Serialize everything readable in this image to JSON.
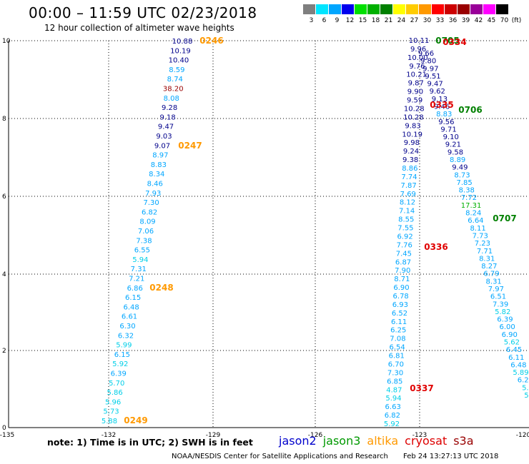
{
  "header": {
    "title": "00:00 – 11:59 UTC 02/23/2018",
    "subtitle": "12 hour collection of altimeter wave heights"
  },
  "color_scale": {
    "unit": "(ft)",
    "bins": [
      {
        "label": "3",
        "color": "#7f7f7f"
      },
      {
        "label": "6",
        "color": "#00e5ff"
      },
      {
        "label": "9",
        "color": "#00a6ff"
      },
      {
        "label": "12",
        "color": "#0000ee"
      },
      {
        "label": "15",
        "color": "#00e000"
      },
      {
        "label": "18",
        "color": "#00b000"
      },
      {
        "label": "21",
        "color": "#008000"
      },
      {
        "label": "24",
        "color": "#ffff00"
      },
      {
        "label": "27",
        "color": "#ffcc00"
      },
      {
        "label": "30",
        "color": "#ff9900"
      },
      {
        "label": "33",
        "color": "#ff0000"
      },
      {
        "label": "36",
        "color": "#cc0000"
      },
      {
        "label": "39",
        "color": "#990000"
      },
      {
        "label": "42",
        "color": "#990099"
      },
      {
        "label": "45",
        "color": "#ff00ff"
      },
      {
        "label": "70",
        "color": "#000000"
      }
    ]
  },
  "map": {
    "x_ticks": [
      "-135",
      "-132",
      "-129",
      "-126",
      "-123",
      "-120"
    ],
    "y_ticks": [
      "0",
      "2",
      "4",
      "6",
      "8",
      "10"
    ],
    "track_left": [
      {
        "v": "10.88",
        "c": "#00008b"
      },
      {
        "v": "10.19",
        "c": "#00008b"
      },
      {
        "v": "10.40",
        "c": "#00008b"
      },
      {
        "v": "8.59",
        "c": "#00a6ff"
      },
      {
        "v": "8.74",
        "c": "#00a6ff"
      },
      {
        "v": "38.20",
        "c": "#990000"
      },
      {
        "v": "8.08",
        "c": "#00a6ff"
      },
      {
        "v": "9.28",
        "c": "#00008b"
      },
      {
        "v": "9.18",
        "c": "#00008b"
      },
      {
        "v": "9.47",
        "c": "#00008b"
      },
      {
        "v": "9.03",
        "c": "#00008b"
      },
      {
        "v": "9.07",
        "c": "#00008b"
      },
      {
        "v": "8.97",
        "c": "#00a6ff"
      },
      {
        "v": "8.83",
        "c": "#00a6ff"
      },
      {
        "v": "8.34",
        "c": "#00a6ff"
      },
      {
        "v": "8.46",
        "c": "#00a6ff"
      },
      {
        "v": "7.93",
        "c": "#00a6ff"
      },
      {
        "v": "7.30",
        "c": "#00a6ff"
      },
      {
        "v": "6.82",
        "c": "#00a6ff"
      },
      {
        "v": "8.09",
        "c": "#00a6ff"
      },
      {
        "v": "7.06",
        "c": "#00a6ff"
      },
      {
        "v": "7.38",
        "c": "#00a6ff"
      },
      {
        "v": "6.55",
        "c": "#00a6ff"
      },
      {
        "v": "5.94",
        "c": "#00cfe8"
      },
      {
        "v": "7.31",
        "c": "#00a6ff"
      },
      {
        "v": "7.21",
        "c": "#00a6ff"
      },
      {
        "v": "6.86",
        "c": "#00a6ff"
      },
      {
        "v": "6.15",
        "c": "#00a6ff"
      },
      {
        "v": "6.48",
        "c": "#00a6ff"
      },
      {
        "v": "6.61",
        "c": "#00a6ff"
      },
      {
        "v": "6.30",
        "c": "#00a6ff"
      },
      {
        "v": "6.32",
        "c": "#00a6ff"
      },
      {
        "v": "5.99",
        "c": "#00cfe8"
      },
      {
        "v": "6.15",
        "c": "#00a6ff"
      },
      {
        "v": "5.92",
        "c": "#00cfe8"
      },
      {
        "v": "6.39",
        "c": "#00a6ff"
      },
      {
        "v": "5.70",
        "c": "#00cfe8"
      },
      {
        "v": "5.86",
        "c": "#00cfe8"
      },
      {
        "v": "5.96",
        "c": "#00cfe8"
      },
      {
        "v": "5.73",
        "c": "#00cfe8"
      },
      {
        "v": "5.88",
        "c": "#00cfe8"
      }
    ],
    "track_mid": [
      {
        "v": "10.11",
        "c": "#00008b"
      },
      {
        "v": "9.96",
        "c": "#00008b"
      },
      {
        "v": "10.00",
        "c": "#00008b"
      },
      {
        "v": "9.76",
        "c": "#00008b"
      },
      {
        "v": "10.21",
        "c": "#00008b"
      },
      {
        "v": "9.87",
        "c": "#00008b"
      },
      {
        "v": "9.90",
        "c": "#00008b"
      },
      {
        "v": "9.59",
        "c": "#00008b"
      },
      {
        "v": "10.28",
        "c": "#00008b"
      },
      {
        "v": "10.28",
        "c": "#00008b"
      },
      {
        "v": "9.83",
        "c": "#00008b"
      },
      {
        "v": "10.19",
        "c": "#00008b"
      },
      {
        "v": "9.98",
        "c": "#00008b"
      },
      {
        "v": "9.24",
        "c": "#00008b"
      },
      {
        "v": "9.38",
        "c": "#00008b"
      },
      {
        "v": "8.86",
        "c": "#00a6ff"
      },
      {
        "v": "7.74",
        "c": "#00a6ff"
      },
      {
        "v": "7.87",
        "c": "#00a6ff"
      },
      {
        "v": "7.69",
        "c": "#00a6ff"
      },
      {
        "v": "8.12",
        "c": "#00a6ff"
      },
      {
        "v": "7.14",
        "c": "#00a6ff"
      },
      {
        "v": "8.55",
        "c": "#00a6ff"
      },
      {
        "v": "7.55",
        "c": "#00a6ff"
      },
      {
        "v": "6.92",
        "c": "#00a6ff"
      },
      {
        "v": "7.76",
        "c": "#00a6ff"
      },
      {
        "v": "7.45",
        "c": "#00a6ff"
      },
      {
        "v": "6.87",
        "c": "#00a6ff"
      },
      {
        "v": "7.90",
        "c": "#00a6ff"
      },
      {
        "v": "8.71",
        "c": "#00a6ff"
      },
      {
        "v": "6.90",
        "c": "#00a6ff"
      },
      {
        "v": "6.78",
        "c": "#00a6ff"
      },
      {
        "v": "6.93",
        "c": "#00a6ff"
      },
      {
        "v": "6.52",
        "c": "#00a6ff"
      },
      {
        "v": "6.11",
        "c": "#00a6ff"
      },
      {
        "v": "6.25",
        "c": "#00a6ff"
      },
      {
        "v": "7.08",
        "c": "#00a6ff"
      },
      {
        "v": "6.54",
        "c": "#00a6ff"
      },
      {
        "v": "6.81",
        "c": "#00a6ff"
      },
      {
        "v": "6.70",
        "c": "#00a6ff"
      },
      {
        "v": "7.30",
        "c": "#00a6ff"
      },
      {
        "v": "6.85",
        "c": "#00a6ff"
      },
      {
        "v": "4.87",
        "c": "#00cfe8"
      },
      {
        "v": "5.94",
        "c": "#00cfe8"
      },
      {
        "v": "6.63",
        "c": "#00a6ff"
      },
      {
        "v": "6.82",
        "c": "#00a6ff"
      },
      {
        "v": "5.92",
        "c": "#00cfe8"
      }
    ],
    "track_right": [
      {
        "v": "9.66",
        "c": "#00008b"
      },
      {
        "v": "9.80",
        "c": "#00008b"
      },
      {
        "v": "9.97",
        "c": "#00008b"
      },
      {
        "v": "9.51",
        "c": "#00008b"
      },
      {
        "v": "9.47",
        "c": "#00008b"
      },
      {
        "v": "9.62",
        "c": "#00008b"
      },
      {
        "v": "9.13",
        "c": "#00008b"
      },
      {
        "v": "9.46",
        "c": "#00008b"
      },
      {
        "v": "8.83",
        "c": "#00a6ff"
      },
      {
        "v": "9.56",
        "c": "#00008b"
      },
      {
        "v": "9.71",
        "c": "#00008b"
      },
      {
        "v": "9.10",
        "c": "#00008b"
      },
      {
        "v": "9.21",
        "c": "#00008b"
      },
      {
        "v": "9.58",
        "c": "#00008b"
      },
      {
        "v": "8.89",
        "c": "#00a6ff"
      },
      {
        "v": "9.49",
        "c": "#00008b"
      },
      {
        "v": "8.73",
        "c": "#00a6ff"
      },
      {
        "v": "7.85",
        "c": "#00a6ff"
      },
      {
        "v": "8.38",
        "c": "#00a6ff"
      },
      {
        "v": "7.72",
        "c": "#00a6ff"
      },
      {
        "v": "17.31",
        "c": "#00b000"
      },
      {
        "v": "8.24",
        "c": "#00a6ff"
      },
      {
        "v": "6.64",
        "c": "#00a6ff"
      },
      {
        "v": "8.11",
        "c": "#00a6ff"
      },
      {
        "v": "7.73",
        "c": "#00a6ff"
      },
      {
        "v": "7.23",
        "c": "#00a6ff"
      },
      {
        "v": "7.71",
        "c": "#00a6ff"
      },
      {
        "v": "8.31",
        "c": "#00a6ff"
      },
      {
        "v": "8.27",
        "c": "#00a6ff"
      },
      {
        "v": "6.79",
        "c": "#00a6ff"
      },
      {
        "v": "8.31",
        "c": "#00a6ff"
      },
      {
        "v": "7.97",
        "c": "#00a6ff"
      },
      {
        "v": "6.51",
        "c": "#00a6ff"
      },
      {
        "v": "7.39",
        "c": "#00a6ff"
      },
      {
        "v": "5.82",
        "c": "#00cfe8"
      },
      {
        "v": "6.39",
        "c": "#00a6ff"
      },
      {
        "v": "6.00",
        "c": "#00a6ff"
      },
      {
        "v": "6.90",
        "c": "#00a6ff"
      },
      {
        "v": "5.62",
        "c": "#00cfe8"
      },
      {
        "v": "6.45",
        "c": "#00a6ff"
      },
      {
        "v": "6.11",
        "c": "#00a6ff"
      },
      {
        "v": "6.48",
        "c": "#00a6ff"
      },
      {
        "v": "5.89",
        "c": "#00cfe8"
      },
      {
        "v": "6.2",
        "c": "#00a6ff"
      },
      {
        "v": "5.",
        "c": "#00cfe8"
      },
      {
        "v": "5.",
        "c": "#00cfe8"
      }
    ],
    "time_labels": [
      {
        "t": "0246",
        "c": "#ff9900"
      },
      {
        "t": "0247",
        "c": "#ff9900"
      },
      {
        "t": "0248",
        "c": "#ff9900"
      },
      {
        "t": "0249",
        "c": "#ff9900"
      },
      {
        "t": "0705",
        "c": "#008000"
      },
      {
        "t": "0334",
        "c": "#e00000"
      },
      {
        "t": "0335",
        "c": "#e00000"
      },
      {
        "t": "0706",
        "c": "#008000"
      },
      {
        "t": "0707",
        "c": "#008000"
      },
      {
        "t": "0336",
        "c": "#e00000"
      },
      {
        "t": "0337",
        "c": "#e00000"
      }
    ]
  },
  "note": "note:  1) Time is in UTC;  2) SWH is in feet",
  "legend": [
    {
      "name": "jason2",
      "color": "#0000cc"
    },
    {
      "name": "jason3",
      "color": "#009900"
    },
    {
      "name": "altika",
      "color": "#ff9900"
    },
    {
      "name": "cryosat",
      "color": "#dd0000"
    },
    {
      "name": "s3a",
      "color": "#990000"
    }
  ],
  "footer": {
    "credit": "NOAA/NESDIS Center for Satellite Applications and Research",
    "date": "Feb 24 13:27:13 UTC 2018"
  }
}
